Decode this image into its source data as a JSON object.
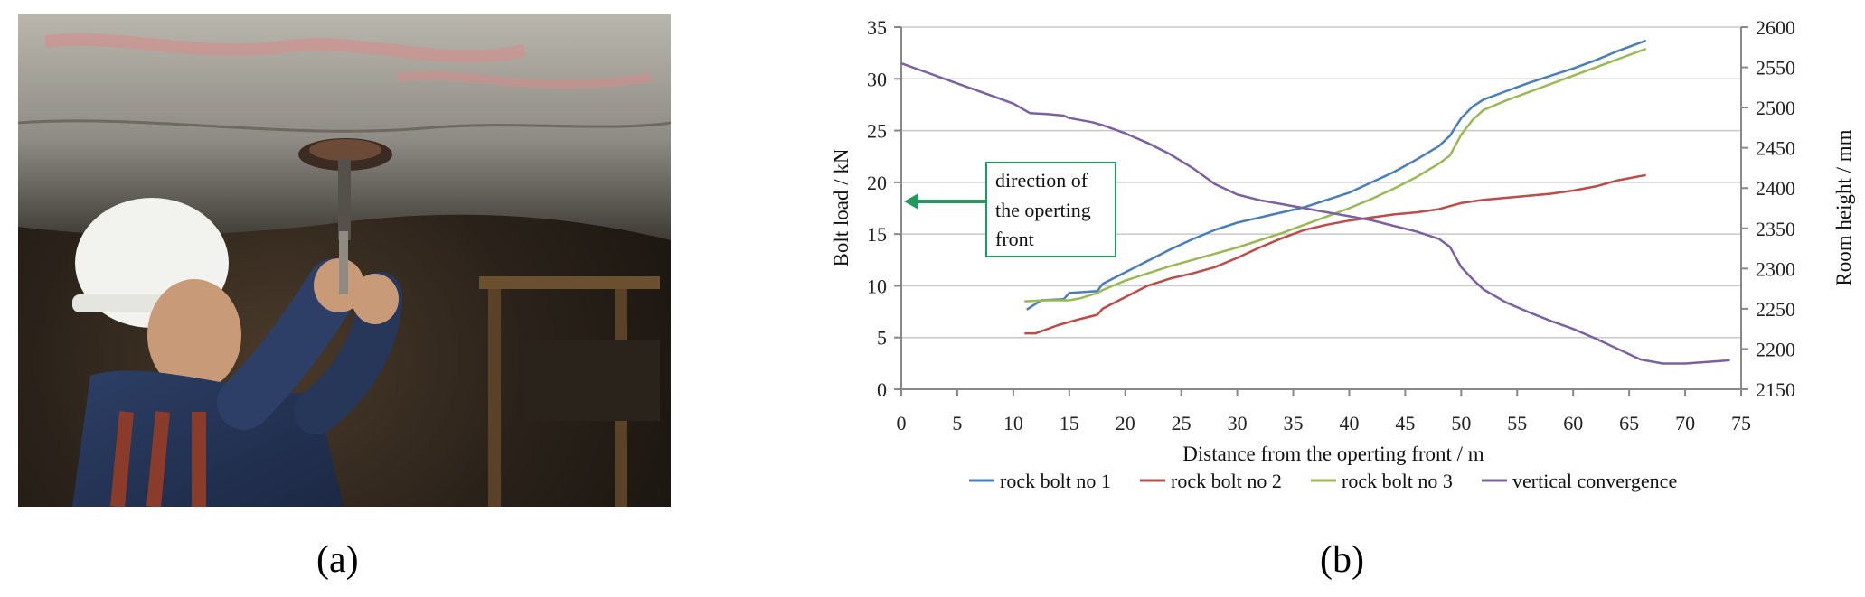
{
  "panels": {
    "a_label": "(a)",
    "b_label": "(b)"
  },
  "chart_data": {
    "type": "line",
    "title": "",
    "xlabel": "Distance from the operting front / m",
    "ylabel_left": "Bolt load / kN",
    "ylabel_right": "Room height / mm",
    "xlim": [
      0,
      75
    ],
    "ylim_left": [
      0,
      35
    ],
    "ylim_right": [
      2150,
      2600
    ],
    "x_ticks": [
      0,
      5,
      10,
      15,
      20,
      25,
      30,
      35,
      40,
      45,
      50,
      55,
      60,
      65,
      70,
      75
    ],
    "y_left_ticks": [
      0,
      5,
      10,
      15,
      20,
      25,
      30,
      35
    ],
    "y_right_ticks": [
      2150,
      2200,
      2250,
      2300,
      2350,
      2400,
      2450,
      2500,
      2550,
      2600
    ],
    "grid": "horizontal",
    "legend_position": "bottom",
    "annotation": {
      "lines": [
        "direction of",
        "the operting",
        "front"
      ],
      "color": "#1e9a5c"
    },
    "series": [
      {
        "name": "rock bolt no 1",
        "axis": "left",
        "color": "#4a7ebb",
        "points": [
          [
            11.2,
            7.7
          ],
          [
            12.5,
            8.6
          ],
          [
            14.5,
            8.7
          ],
          [
            15,
            9.3
          ],
          [
            17.5,
            9.5
          ],
          [
            18,
            10.2
          ],
          [
            20,
            11.3
          ],
          [
            22,
            12.4
          ],
          [
            24,
            13.5
          ],
          [
            26,
            14.5
          ],
          [
            28,
            15.4
          ],
          [
            30,
            16.1
          ],
          [
            32,
            16.6
          ],
          [
            34,
            17.1
          ],
          [
            36,
            17.6
          ],
          [
            38,
            18.3
          ],
          [
            40,
            19.0
          ],
          [
            42,
            20.0
          ],
          [
            44,
            21.0
          ],
          [
            46,
            22.2
          ],
          [
            48,
            23.5
          ],
          [
            49,
            24.5
          ],
          [
            50,
            26.2
          ],
          [
            51,
            27.3
          ],
          [
            52,
            28.0
          ],
          [
            54,
            28.8
          ],
          [
            56,
            29.6
          ],
          [
            58,
            30.3
          ],
          [
            60,
            31.0
          ],
          [
            62,
            31.8
          ],
          [
            64,
            32.7
          ],
          [
            66.5,
            33.7
          ]
        ]
      },
      {
        "name": "rock bolt no 2",
        "axis": "left",
        "color": "#be4b48",
        "points": [
          [
            11,
            5.4
          ],
          [
            12,
            5.4
          ],
          [
            14,
            6.2
          ],
          [
            16,
            6.8
          ],
          [
            17.5,
            7.2
          ],
          [
            18,
            7.8
          ],
          [
            20,
            8.9
          ],
          [
            22,
            10.0
          ],
          [
            24,
            10.7
          ],
          [
            26,
            11.2
          ],
          [
            28,
            11.8
          ],
          [
            30,
            12.7
          ],
          [
            32,
            13.7
          ],
          [
            34,
            14.6
          ],
          [
            36,
            15.4
          ],
          [
            38,
            15.9
          ],
          [
            40,
            16.3
          ],
          [
            42,
            16.6
          ],
          [
            44,
            16.9
          ],
          [
            46,
            17.1
          ],
          [
            48,
            17.4
          ],
          [
            50,
            18.0
          ],
          [
            52,
            18.3
          ],
          [
            54,
            18.5
          ],
          [
            56,
            18.7
          ],
          [
            58,
            18.9
          ],
          [
            60,
            19.2
          ],
          [
            62,
            19.6
          ],
          [
            64,
            20.2
          ],
          [
            66.5,
            20.7
          ]
        ]
      },
      {
        "name": "rock bolt no 3",
        "axis": "left",
        "color": "#98b954",
        "points": [
          [
            11,
            8.5
          ],
          [
            13,
            8.6
          ],
          [
            15,
            8.6
          ],
          [
            16,
            8.8
          ],
          [
            17.5,
            9.3
          ],
          [
            18,
            9.6
          ],
          [
            20,
            10.5
          ],
          [
            22,
            11.2
          ],
          [
            24,
            11.9
          ],
          [
            26,
            12.5
          ],
          [
            28,
            13.1
          ],
          [
            30,
            13.7
          ],
          [
            32,
            14.4
          ],
          [
            34,
            15.1
          ],
          [
            36,
            15.9
          ],
          [
            38,
            16.7
          ],
          [
            40,
            17.5
          ],
          [
            42,
            18.4
          ],
          [
            44,
            19.4
          ],
          [
            46,
            20.5
          ],
          [
            48,
            21.8
          ],
          [
            49,
            22.6
          ],
          [
            50,
            24.6
          ],
          [
            51,
            26.0
          ],
          [
            52,
            27.0
          ],
          [
            54,
            27.9
          ],
          [
            56,
            28.7
          ],
          [
            58,
            29.5
          ],
          [
            60,
            30.3
          ],
          [
            62,
            31.1
          ],
          [
            64,
            31.9
          ],
          [
            66.5,
            32.9
          ]
        ]
      },
      {
        "name": "vertical convergence",
        "axis": "right",
        "color": "#7d60a0",
        "points": [
          [
            0,
            2555
          ],
          [
            2,
            2545
          ],
          [
            4,
            2535
          ],
          [
            6,
            2525
          ],
          [
            8,
            2515
          ],
          [
            10,
            2505
          ],
          [
            11.5,
            2493
          ],
          [
            13,
            2492
          ],
          [
            14.5,
            2490
          ],
          [
            15,
            2487
          ],
          [
            17,
            2482
          ],
          [
            18,
            2478
          ],
          [
            20,
            2468
          ],
          [
            22,
            2456
          ],
          [
            24,
            2442
          ],
          [
            26,
            2425
          ],
          [
            28,
            2405
          ],
          [
            30,
            2392
          ],
          [
            32,
            2385
          ],
          [
            34,
            2380
          ],
          [
            36,
            2375
          ],
          [
            38,
            2370
          ],
          [
            40,
            2365
          ],
          [
            42,
            2360
          ],
          [
            44,
            2353
          ],
          [
            46,
            2346
          ],
          [
            48,
            2337
          ],
          [
            49,
            2327
          ],
          [
            50,
            2302
          ],
          [
            51,
            2287
          ],
          [
            52,
            2274
          ],
          [
            54,
            2258
          ],
          [
            56,
            2246
          ],
          [
            58,
            2235
          ],
          [
            60,
            2225
          ],
          [
            62,
            2213
          ],
          [
            64,
            2200
          ],
          [
            66,
            2187
          ],
          [
            68,
            2182
          ],
          [
            70,
            2182
          ],
          [
            72,
            2184
          ],
          [
            74,
            2186
          ]
        ]
      }
    ]
  }
}
